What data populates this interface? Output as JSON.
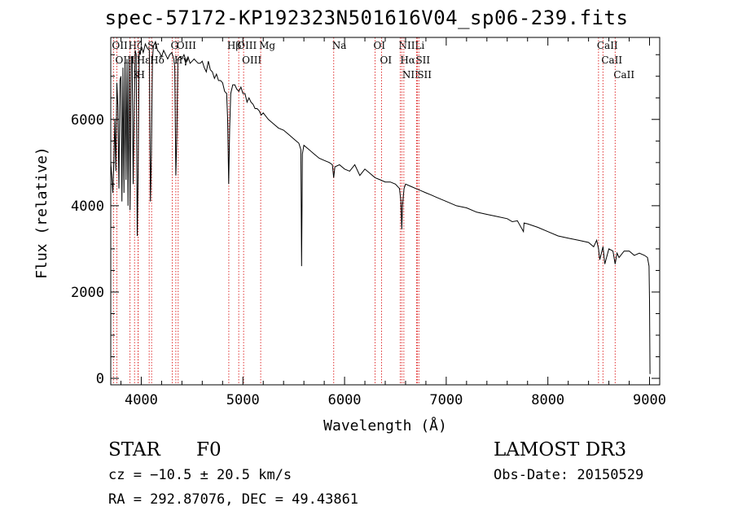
{
  "header": {
    "title": "spec-57172-KP192323N501616V04_sp06-239.fits"
  },
  "info": {
    "object_type": "STAR",
    "subclass": "F0",
    "survey": "LAMOST DR3",
    "redshift": "cz = −10.5 ± 20.5 km/s",
    "obs_date": "Obs-Date: 20150529",
    "coords": "RA = 292.87076, DEC =  49.43861"
  },
  "chart_data": {
    "type": "line",
    "title": "spec-57172-KP192323N501616V04_sp06-239.fits",
    "xlabel": "Wavelength (Å)",
    "ylabel": "Flux (relative)",
    "xlim": [
      3700,
      9100
    ],
    "ylim": [
      -150,
      7900
    ],
    "xticks": [
      4000,
      5000,
      6000,
      7000,
      8000,
      9000
    ],
    "yticks": [
      0,
      2000,
      4000,
      6000
    ],
    "grid": false,
    "series": [
      {
        "name": "flux",
        "x": [
          3700,
          3710,
          3720,
          3730,
          3740,
          3750,
          3760,
          3770,
          3780,
          3790,
          3800,
          3810,
          3820,
          3830,
          3840,
          3850,
          3860,
          3870,
          3880,
          3890,
          3900,
          3910,
          3920,
          3930,
          3940,
          3950,
          3960,
          3970,
          3980,
          3990,
          4000,
          4020,
          4040,
          4060,
          4080,
          4090,
          4100,
          4110,
          4120,
          4140,
          4160,
          4180,
          4200,
          4220,
          4240,
          4260,
          4280,
          4300,
          4320,
          4330,
          4340,
          4350,
          4360,
          4380,
          4400,
          4420,
          4440,
          4460,
          4480,
          4500,
          4520,
          4540,
          4560,
          4580,
          4600,
          4620,
          4640,
          4660,
          4680,
          4700,
          4720,
          4740,
          4760,
          4780,
          4800,
          4820,
          4840,
          4850,
          4860,
          4870,
          4880,
          4900,
          4920,
          4940,
          4960,
          4980,
          5000,
          5020,
          5040,
          5060,
          5080,
          5100,
          5120,
          5140,
          5160,
          5180,
          5200,
          5250,
          5300,
          5350,
          5400,
          5450,
          5500,
          5550,
          5570,
          5577,
          5585,
          5600,
          5650,
          5700,
          5750,
          5800,
          5850,
          5880,
          5893,
          5905,
          5950,
          6000,
          6050,
          6100,
          6150,
          6200,
          6250,
          6300,
          6350,
          6400,
          6450,
          6500,
          6540,
          6555,
          6563,
          6570,
          6585,
          6600,
          6650,
          6700,
          6750,
          6800,
          6850,
          6900,
          6950,
          7000,
          7100,
          7200,
          7300,
          7400,
          7500,
          7600,
          7650,
          7700,
          7760,
          7765,
          7800,
          7900,
          8000,
          8100,
          8200,
          8300,
          8400,
          8450,
          8480,
          8498,
          8510,
          8542,
          8560,
          8600,
          8640,
          8662,
          8680,
          8700,
          8750,
          8800,
          8850,
          8900,
          8950,
          8980,
          8995,
          9000,
          9005
        ],
        "values": [
          5000,
          4700,
          4300,
          4950,
          6000,
          4800,
          6850,
          6300,
          4400,
          6900,
          7000,
          4100,
          7200,
          4300,
          7300,
          4600,
          7400,
          4000,
          7450,
          3900,
          7450,
          7450,
          4500,
          6200,
          7600,
          7500,
          3300,
          4900,
          7600,
          7500,
          7700,
          7550,
          7750,
          7650,
          7600,
          4100,
          5200,
          7400,
          7700,
          7800,
          7600,
          7550,
          7450,
          7600,
          7500,
          7400,
          7500,
          7550,
          7400,
          7200,
          4700,
          5600,
          7400,
          7450,
          7400,
          7500,
          7350,
          7450,
          7300,
          7350,
          7400,
          7350,
          7300,
          7300,
          7350,
          7200,
          7100,
          7350,
          7150,
          7100,
          6950,
          7050,
          6900,
          6900,
          6850,
          6650,
          6600,
          6000,
          4500,
          5800,
          6600,
          6800,
          6800,
          6700,
          6650,
          6750,
          6600,
          6600,
          6400,
          6500,
          6400,
          6350,
          6250,
          6250,
          6200,
          6100,
          6150,
          6000,
          5900,
          5800,
          5750,
          5650,
          5550,
          5450,
          5300,
          2600,
          5200,
          5400,
          5300,
          5200,
          5100,
          5050,
          5000,
          4950,
          4650,
          4900,
          4950,
          4850,
          4800,
          4950,
          4700,
          4850,
          4750,
          4650,
          4600,
          4550,
          4550,
          4500,
          4400,
          4100,
          3450,
          4000,
          4400,
          4500,
          4450,
          4400,
          4350,
          4300,
          4250,
          4200,
          4150,
          4100,
          4000,
          3950,
          3850,
          3800,
          3750,
          3700,
          3630,
          3650,
          3400,
          3600,
          3580,
          3500,
          3400,
          3300,
          3250,
          3200,
          3150,
          3050,
          3200,
          3000,
          2750,
          3050,
          2650,
          3000,
          2950,
          2650,
          2900,
          2800,
          2950,
          2950,
          2850,
          2900,
          2850,
          2800,
          2600,
          1800,
          100
        ]
      }
    ],
    "lines": [
      {
        "label": "Hε",
        "wavelength": 3970
      },
      {
        "label": "OII",
        "wavelength": 3727
      },
      {
        "label": "OIII",
        "wavelength": 3760
      },
      {
        "label": "Hζ",
        "wavelength": 3889
      },
      {
        "label": "K",
        "wavelength": 3934
      },
      {
        "label": "H",
        "wavelength": 3968
      },
      {
        "label": "Hδ",
        "wavelength": 4102
      },
      {
        "label": "G",
        "wavelength": 4305
      },
      {
        "label": "Sr",
        "wavelength": 4078
      },
      {
        "label": "Hγ",
        "wavelength": 4340
      },
      {
        "label": "OIII",
        "wavelength": 4363
      },
      {
        "label": "Hβ",
        "wavelength": 4861
      },
      {
        "label": "OIII",
        "wavelength": 4959
      },
      {
        "label": "OIII",
        "wavelength": 5007
      },
      {
        "label": "Mg",
        "wavelength": 5175
      },
      {
        "label": "Na",
        "wavelength": 5893
      },
      {
        "label": "OI",
        "wavelength": 6300
      },
      {
        "label": "OI",
        "wavelength": 6364
      },
      {
        "label": "Hα",
        "wavelength": 6563
      },
      {
        "label": "NII",
        "wavelength": 6548
      },
      {
        "label": "NII",
        "wavelength": 6583
      },
      {
        "label": "SII",
        "wavelength": 6716
      },
      {
        "label": "SII",
        "wavelength": 6731
      },
      {
        "label": "Li",
        "wavelength": 6708
      },
      {
        "label": "CaII",
        "wavelength": 8498
      },
      {
        "label": "CaII",
        "wavelength": 8542
      },
      {
        "label": "CaII",
        "wavelength": 8662
      }
    ]
  }
}
